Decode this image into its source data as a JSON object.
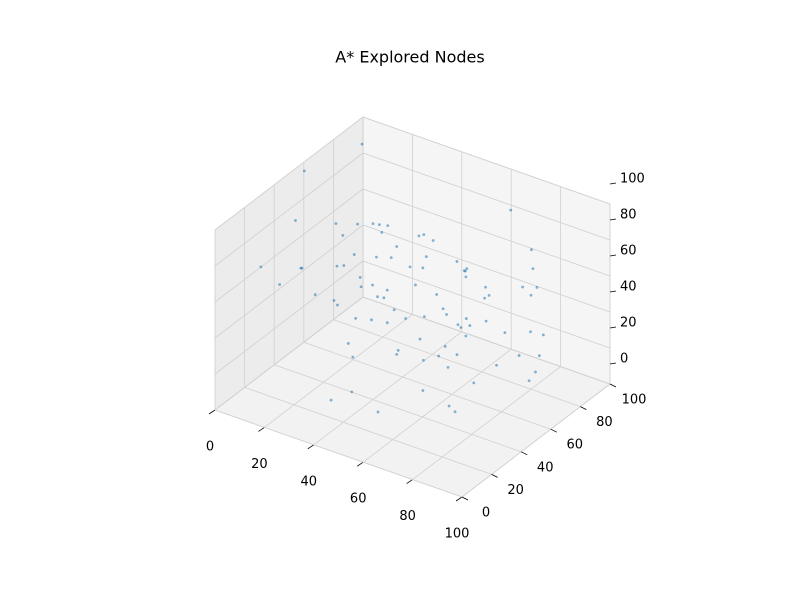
{
  "chart_data": {
    "type": "scatter3d",
    "title": "A* Explored Nodes",
    "color": "#1f77b4",
    "grid": true,
    "xlim": [
      0,
      100
    ],
    "ylim": [
      0,
      100
    ],
    "zlim": [
      0,
      100
    ],
    "xticks": [
      0,
      20,
      40,
      60,
      80,
      100
    ],
    "yticks": [
      0,
      20,
      40,
      60,
      80,
      100
    ],
    "zticks": [
      0,
      20,
      40,
      60,
      80,
      100
    ],
    "x": [
      12,
      45,
      78,
      33,
      90,
      5,
      62,
      27,
      84,
      51,
      18,
      70,
      39,
      96,
      8,
      57,
      24,
      81,
      44,
      66,
      15,
      92,
      36,
      73,
      2,
      59,
      29,
      87,
      48,
      11,
      76,
      41,
      95,
      20,
      64,
      53,
      7,
      82,
      31,
      68,
      14,
      99,
      43,
      58,
      25,
      89,
      3,
      71,
      37,
      80,
      16,
      61,
      47,
      93,
      22,
      55,
      9,
      85,
      34,
      74,
      50,
      42,
      63,
      28,
      77,
      35,
      55,
      46,
      69,
      19,
      88,
      40,
      58,
      26,
      72,
      49,
      31,
      65,
      53,
      84,
      38,
      60,
      44,
      79,
      23,
      67,
      52,
      36,
      74,
      57
    ],
    "y": [
      67,
      23,
      89,
      54,
      12,
      91,
      38,
      76,
      45,
      8,
      60,
      97,
      29,
      52,
      83,
      15,
      71,
      34,
      95,
      48,
      6,
      63,
      81,
      19,
      57,
      42,
      99,
      27,
      74,
      36,
      88,
      10,
      59,
      47,
      3,
      69,
      32,
      85,
      16,
      50,
      93,
      25,
      78,
      41,
      64,
      7,
      53,
      87,
      21,
      36,
      72,
      98,
      14,
      58,
      45,
      31,
      80,
      66,
      2,
      90,
      52,
      44,
      61,
      70,
      35,
      58,
      40,
      66,
      49,
      81,
      28,
      56,
      73,
      39,
      62,
      47,
      55,
      30,
      68,
      43,
      77,
      51,
      33,
      64,
      48,
      71,
      37,
      59,
      46,
      75
    ],
    "z": [
      44,
      81,
      12,
      67,
      35,
      93,
      58,
      21,
      76,
      49,
      8,
      62,
      87,
      30,
      55,
      17,
      70,
      95,
      39,
      4,
      83,
      26,
      64,
      51,
      98,
      13,
      46,
      72,
      33,
      88,
      60,
      19,
      77,
      41,
      92,
      6,
      53,
      28,
      69,
      84,
      15,
      57,
      36,
      99,
      22,
      74,
      47,
      10,
      63,
      90,
      31,
      79,
      24,
      52,
      86,
      38,
      5,
      68,
      94,
      43,
      61,
      55,
      38,
      72,
      46,
      29,
      81,
      66,
      50,
      57,
      40,
      75,
      33,
      68,
      58,
      45,
      84,
      52,
      36,
      63,
      49,
      27,
      70,
      41,
      78,
      56,
      35,
      65,
      48,
      59
    ]
  }
}
